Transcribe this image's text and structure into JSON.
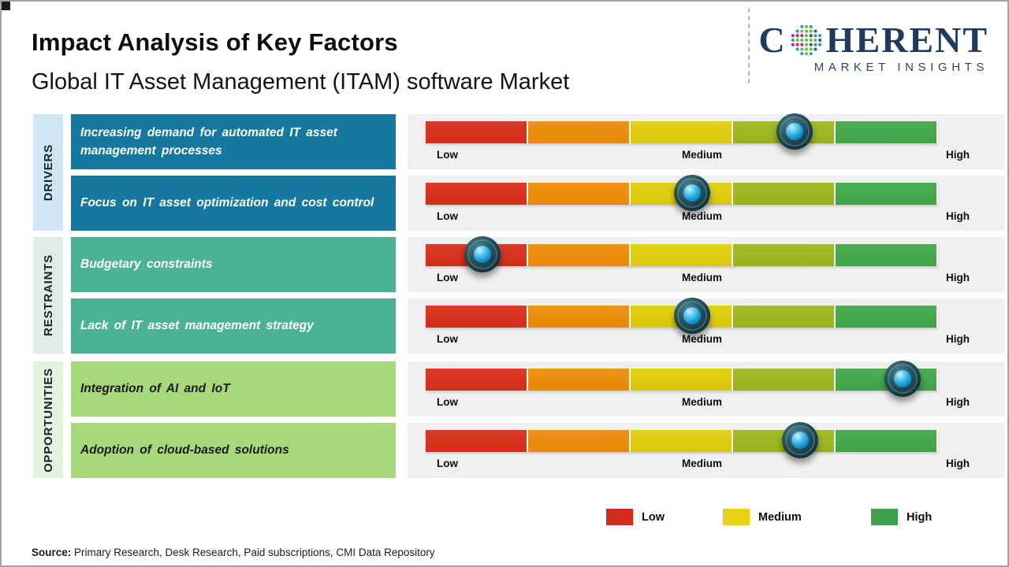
{
  "header": {
    "title": "Impact Analysis of Key Factors",
    "subtitle": "Global IT Asset Management (ITAM) software Market"
  },
  "logo": {
    "name": "Coherent Market Insights",
    "word_start": "C",
    "word_end": "HERENT",
    "tagline": "MARKET INSIGHTS",
    "icon": "dotted-globe-icon",
    "color": "#1F3A5F"
  },
  "scale": {
    "low": "Low",
    "medium": "Medium",
    "high": "High",
    "segment_colors": [
      "#D72C1B",
      "#EC8B0E",
      "#DCCB10",
      "#9BB421",
      "#45A74C"
    ]
  },
  "categories": [
    {
      "label": "DRIVERS",
      "strip_color": "#CFE7F3",
      "box_color": "#16789F",
      "factors": [
        {
          "text": "Increasing demand for automated IT asset management processes",
          "impact_level": "Medium-High",
          "impact_pct": 72
        },
        {
          "text": "Focus on IT asset optimization and cost control",
          "impact_level": "Medium",
          "impact_pct": 52
        }
      ]
    },
    {
      "label": "RESTRAINTS",
      "strip_color": "#DCEDE7",
      "box_color": "#4CB294",
      "factors": [
        {
          "text": "Budgetary constraints",
          "impact_level": "Low",
          "impact_pct": 11
        },
        {
          "text": "Lack of IT asset management strategy",
          "impact_level": "Medium",
          "impact_pct": 52
        }
      ]
    },
    {
      "label": "OPPORTUNITIES",
      "strip_color": "#E4F3DC",
      "box_color": "#A8D87C",
      "factors": [
        {
          "text": "Integration of AI and IoT",
          "impact_level": "High",
          "impact_pct": 93
        },
        {
          "text": "Adoption of cloud-based solutions",
          "impact_level": "Medium-High",
          "impact_pct": 73
        }
      ]
    }
  ],
  "legend": {
    "items": [
      {
        "label": "Low",
        "color": "#D22B1E"
      },
      {
        "label": "Medium",
        "color": "#E8D313"
      },
      {
        "label": "High",
        "color": "#3EA14B"
      }
    ]
  },
  "source": {
    "label": "Source:",
    "text": " Primary Research, Desk Research, Paid subscriptions, CMI Data Repository"
  },
  "chart_data": {
    "type": "table",
    "title": "Impact Analysis of Key Factors",
    "subtitle": "Global IT Asset Management (ITAM) software Market",
    "scale": {
      "labels": [
        "Low",
        "Medium",
        "High"
      ],
      "range_pct": [
        0,
        100
      ]
    },
    "rows": [
      {
        "category": "DRIVERS",
        "factor": "Increasing demand for automated IT asset management processes",
        "impact_level": "Medium-High",
        "impact_pct": 72
      },
      {
        "category": "DRIVERS",
        "factor": "Focus on IT asset optimization and cost control",
        "impact_level": "Medium",
        "impact_pct": 52
      },
      {
        "category": "RESTRAINTS",
        "factor": "Budgetary constraints",
        "impact_level": "Low",
        "impact_pct": 11
      },
      {
        "category": "RESTRAINTS",
        "factor": "Lack of IT asset management strategy",
        "impact_level": "Medium",
        "impact_pct": 52
      },
      {
        "category": "OPPORTUNITIES",
        "factor": "Integration of AI and IoT",
        "impact_level": "High",
        "impact_pct": 93
      },
      {
        "category": "OPPORTUNITIES",
        "factor": "Adoption of cloud-based solutions",
        "impact_level": "Medium-High",
        "impact_pct": 73
      }
    ],
    "legend": [
      "Low",
      "Medium",
      "High"
    ],
    "legend_position": "bottom-right",
    "source": "Primary Research, Desk Research, Paid subscriptions, CMI Data Repository"
  }
}
